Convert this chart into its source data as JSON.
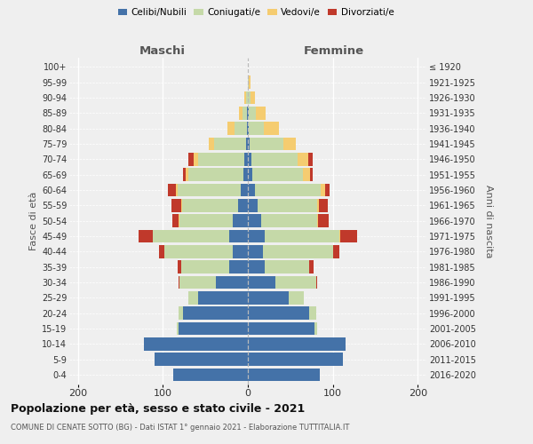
{
  "age_groups": [
    "0-4",
    "5-9",
    "10-14",
    "15-19",
    "20-24",
    "25-29",
    "30-34",
    "35-39",
    "40-44",
    "45-49",
    "50-54",
    "55-59",
    "60-64",
    "65-69",
    "70-74",
    "75-79",
    "80-84",
    "85-89",
    "90-94",
    "95-99",
    "100+"
  ],
  "birth_years": [
    "2016-2020",
    "2011-2015",
    "2006-2010",
    "2001-2005",
    "1996-2000",
    "1991-1995",
    "1986-1990",
    "1981-1985",
    "1976-1980",
    "1971-1975",
    "1966-1970",
    "1961-1965",
    "1956-1960",
    "1951-1955",
    "1946-1950",
    "1941-1945",
    "1936-1940",
    "1931-1935",
    "1926-1930",
    "1921-1925",
    "≤ 1920"
  ],
  "colors": {
    "celibi": "#4472a8",
    "coniugati": "#c5d9a8",
    "vedovi": "#f5cc70",
    "divorziati": "#c0392b"
  },
  "maschi": {
    "celibi": [
      88,
      110,
      122,
      82,
      76,
      58,
      38,
      22,
      18,
      22,
      18,
      12,
      8,
      5,
      4,
      2,
      1,
      1,
      0,
      0,
      0
    ],
    "coniugati": [
      0,
      0,
      0,
      2,
      5,
      12,
      42,
      56,
      80,
      90,
      62,
      65,
      75,
      65,
      55,
      38,
      15,
      5,
      2,
      0,
      0
    ],
    "vedovi": [
      0,
      0,
      0,
      0,
      0,
      0,
      0,
      0,
      0,
      0,
      1,
      1,
      2,
      3,
      5,
      6,
      8,
      4,
      2,
      0,
      0
    ],
    "divorziati": [
      0,
      0,
      0,
      0,
      0,
      0,
      2,
      5,
      6,
      16,
      8,
      12,
      9,
      3,
      6,
      0,
      0,
      0,
      0,
      0,
      0
    ]
  },
  "femmine": {
    "celibi": [
      85,
      112,
      115,
      78,
      72,
      48,
      32,
      20,
      18,
      20,
      16,
      12,
      8,
      5,
      4,
      2,
      1,
      1,
      0,
      0,
      0
    ],
    "coniugati": [
      0,
      0,
      0,
      3,
      8,
      18,
      48,
      52,
      82,
      88,
      65,
      70,
      78,
      60,
      55,
      40,
      18,
      8,
      3,
      1,
      0
    ],
    "vedovi": [
      0,
      0,
      0,
      0,
      0,
      0,
      0,
      0,
      0,
      1,
      2,
      2,
      5,
      8,
      12,
      14,
      18,
      12,
      5,
      2,
      0
    ],
    "divorziati": [
      0,
      0,
      0,
      0,
      0,
      0,
      2,
      5,
      8,
      20,
      12,
      10,
      5,
      3,
      5,
      0,
      0,
      0,
      0,
      0,
      0
    ]
  },
  "xlim": 210,
  "xtick_vals": [
    -200,
    -100,
    0,
    100,
    200
  ],
  "xtick_labels": [
    "200",
    "100",
    "0",
    "100",
    "200"
  ],
  "title": "Popolazione per età, sesso e stato civile - 2021",
  "subtitle": "COMUNE DI CENATE SOTTO (BG) - Dati ISTAT 1° gennaio 2021 - Elaborazione TUTTITALIA.IT",
  "xlabel_left": "Maschi",
  "xlabel_right": "Femmine",
  "ylabel_left": "Fasce di età",
  "ylabel_right": "Anni di nascita",
  "bg_color": "#efefef"
}
